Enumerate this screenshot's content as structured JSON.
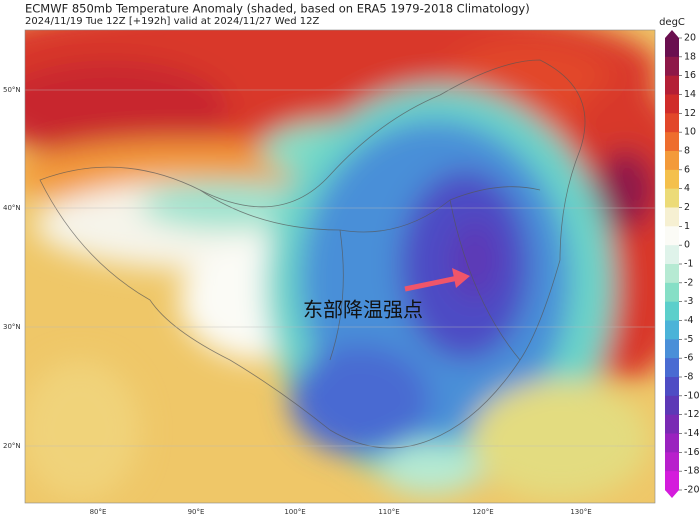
{
  "header": {
    "title": "ECMWF 850mb Temperature Anomaly (shaded, based on ERA5 1979-2018 Climatology)",
    "subtitle": "2024/11/19 Tue 12Z [+192h] valid at 2024/11/27 Wed 12Z"
  },
  "colorbar": {
    "unit": "degC",
    "ticks": [
      20,
      18,
      16,
      14,
      12,
      10,
      8,
      6,
      4,
      2,
      1,
      0,
      -1,
      -2,
      -3,
      -4,
      -5,
      -6,
      -8,
      -10,
      -12,
      -14,
      -16,
      -18,
      -20
    ],
    "colors": [
      "#6a0f4f",
      "#8e1848",
      "#b41f36",
      "#d02c2a",
      "#e2472a",
      "#ee6d2e",
      "#f39a3a",
      "#f4c04c",
      "#ecdb78",
      "#f6f0d2",
      "#fbfbf6",
      "#dff3ea",
      "#b6ead3",
      "#86dfc6",
      "#5ccfcb",
      "#4bb3d8",
      "#4a8fd8",
      "#496bd2",
      "#4e4cc4",
      "#5d38b6",
      "#7a2ab4",
      "#9a22bf",
      "#b81fcc",
      "#d41cdc"
    ]
  },
  "map": {
    "lat_labels": [
      "50°N",
      "40°N",
      "30°N",
      "20°N"
    ],
    "lon_labels": [
      "80°E",
      "90°E",
      "100°E",
      "110°E",
      "120°E",
      "130°E"
    ]
  },
  "annotation": "东部降温强点"
}
